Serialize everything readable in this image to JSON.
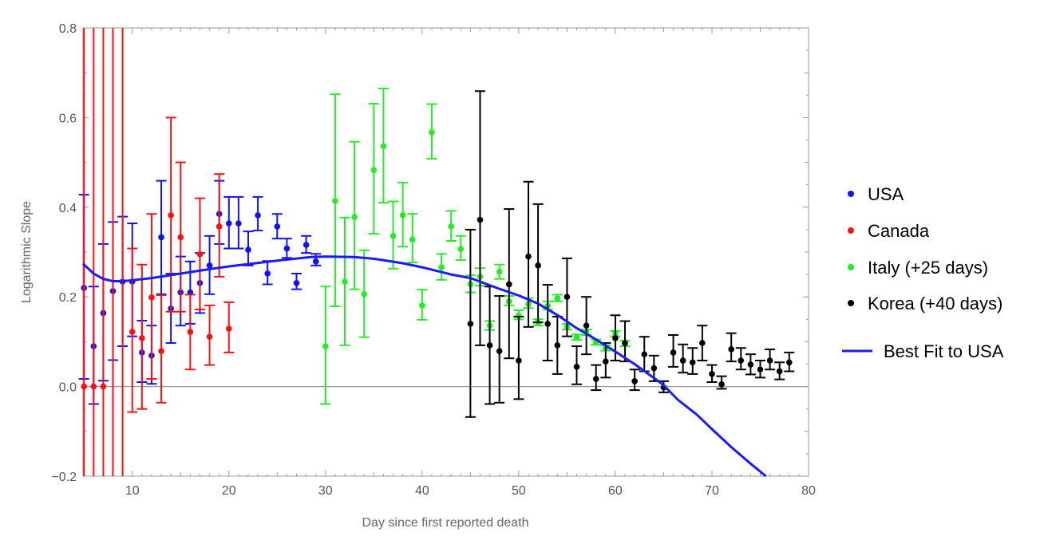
{
  "chart_data": {
    "type": "scatter",
    "title": "",
    "xlabel": "Day since first reported death",
    "ylabel": "Logarithmic Slope",
    "xlim": [
      4.9,
      80
    ],
    "ylim": [
      -0.2,
      0.8
    ],
    "xticks": [
      10,
      20,
      30,
      40,
      50,
      60,
      70,
      80
    ],
    "yticks": [
      -0.2,
      0.0,
      0.2,
      0.4,
      0.6,
      0.8
    ],
    "ytick_labels": [
      "−0.2",
      "0.0",
      "0.2",
      "0.4",
      "0.6",
      "0.8"
    ],
    "grid": false,
    "zero_line": true,
    "legend_position": "right",
    "point_format": [
      "day",
      "value",
      "error_low",
      "error_high"
    ],
    "series": [
      {
        "name": "USA",
        "color": "#1010ff",
        "points": [
          [
            5,
            0.22,
            0.017,
            0.428
          ],
          [
            6,
            0.09,
            -0.039,
            0.223
          ],
          [
            7,
            0.164,
            0.013,
            0.318
          ],
          [
            8,
            0.213,
            0.059,
            0.367
          ],
          [
            9,
            0.234,
            0.09,
            0.379
          ],
          [
            10,
            0.234,
            0.112,
            0.364
          ],
          [
            11,
            0.076,
            0.01,
            0.147
          ],
          [
            12,
            0.069,
            0.006,
            0.136
          ],
          [
            13,
            0.333,
            0.206,
            0.459
          ],
          [
            14,
            0.174,
            0.097,
            0.252
          ],
          [
            15,
            0.21,
            0.136,
            0.29
          ],
          [
            16,
            0.21,
            0.14,
            0.279
          ],
          [
            17,
            0.231,
            0.164,
            0.298
          ],
          [
            18,
            0.27,
            0.206,
            0.336
          ],
          [
            19,
            0.385,
            0.318,
            0.459
          ],
          [
            20,
            0.364,
            0.308,
            0.423
          ],
          [
            21,
            0.364,
            0.308,
            0.423
          ],
          [
            22,
            0.305,
            0.27,
            0.346
          ],
          [
            23,
            0.382,
            0.348,
            0.423
          ],
          [
            24,
            0.252,
            0.228,
            0.28
          ],
          [
            25,
            0.357,
            0.33,
            0.385
          ],
          [
            26,
            0.308,
            0.287,
            0.33
          ],
          [
            27,
            0.231,
            0.217,
            0.252
          ],
          [
            28,
            0.316,
            0.298,
            0.336
          ],
          [
            29,
            0.279,
            0.27,
            0.296
          ]
        ]
      },
      {
        "name": "Canada",
        "color": "#ff1010",
        "points": [
          [
            5,
            0,
            -1,
            1
          ],
          [
            6,
            0,
            -1,
            1
          ],
          [
            7,
            0,
            -1,
            1
          ],
          [
            8,
            null,
            -1,
            1
          ],
          [
            9,
            null,
            -1,
            1
          ],
          [
            10,
            0.122,
            -0.057,
            0.308
          ],
          [
            11,
            0.108,
            -0.05,
            0.272
          ],
          [
            12,
            0.199,
            0.017,
            0.385
          ],
          [
            13,
            0.079,
            -0.036,
            0.204
          ],
          [
            14,
            0.382,
            0.167,
            0.6
          ],
          [
            15,
            0.333,
            0.167,
            0.5
          ],
          [
            16,
            0.122,
            0.038,
            0.205
          ],
          [
            17,
            0.295,
            0.172,
            0.42
          ],
          [
            18,
            0.111,
            0.048,
            0.181
          ],
          [
            19,
            0.357,
            0.245,
            0.474
          ],
          [
            20,
            0.129,
            0.076,
            0.188
          ]
        ]
      },
      {
        "name": "Italy (+25 days)",
        "color": "#22ee22",
        "points": [
          [
            30,
            0.09,
            -0.039,
            0.223
          ],
          [
            31,
            0.414,
            0.179,
            0.652
          ],
          [
            32,
            0.234,
            0.092,
            0.377
          ],
          [
            33,
            0.378,
            0.217,
            0.546
          ],
          [
            34,
            0.206,
            0.11,
            0.304
          ],
          [
            35,
            0.483,
            0.341,
            0.631
          ],
          [
            36,
            0.536,
            0.41,
            0.665
          ],
          [
            37,
            0.336,
            0.263,
            0.413
          ],
          [
            38,
            0.382,
            0.312,
            0.455
          ],
          [
            39,
            0.328,
            0.277,
            0.385
          ],
          [
            40,
            0.181,
            0.149,
            0.216
          ],
          [
            41,
            0.567,
            0.508,
            0.63
          ],
          [
            42,
            0.266,
            0.238,
            0.296
          ],
          [
            43,
            0.357,
            0.325,
            0.392
          ],
          [
            44,
            0.307,
            0.282,
            0.336
          ],
          [
            45,
            0.228,
            0.21,
            0.248
          ],
          [
            46,
            0.245,
            0.225,
            0.264
          ],
          [
            47,
            0.136,
            0.126,
            0.146
          ],
          [
            48,
            0.256,
            0.24,
            0.272
          ],
          [
            49,
            0.19,
            0.181,
            0.202
          ],
          [
            50,
            0.158,
            0.15,
            0.17
          ],
          [
            51,
            0.184,
            0.175,
            0.197
          ],
          [
            52,
            0.143,
            0.136,
            0.15
          ],
          [
            53,
            0.18,
            0.172,
            0.19
          ],
          [
            54,
            0.197,
            0.19,
            0.205
          ],
          [
            55,
            0.133,
            0.127,
            0.14
          ],
          [
            56,
            0.11,
            0.104,
            0.116
          ],
          [
            57,
            0.121,
            0.115,
            0.127
          ],
          [
            58,
            0.099,
            0.093,
            0.105
          ],
          [
            59,
            0.086,
            0.08,
            0.092
          ],
          [
            60,
            0.118,
            0.112,
            0.124
          ],
          [
            61,
            0.096,
            0.09,
            0.102
          ]
        ]
      },
      {
        "name": "Korea (+40 days)",
        "color": "#000000",
        "points": [
          [
            45,
            0.14,
            -0.068,
            0.35
          ],
          [
            46,
            0.372,
            0.092,
            0.659
          ],
          [
            47,
            0.092,
            -0.039,
            0.223
          ],
          [
            48,
            0.079,
            -0.036,
            0.202
          ],
          [
            49,
            0.228,
            0.063,
            0.396
          ],
          [
            50,
            0.058,
            -0.028,
            0.156
          ],
          [
            51,
            0.29,
            0.133,
            0.457
          ],
          [
            52,
            0.27,
            0.143,
            0.407
          ],
          [
            53,
            0.14,
            0.058,
            0.227
          ],
          [
            54,
            0.092,
            0.028,
            0.156
          ],
          [
            55,
            0.2,
            0.112,
            0.286
          ],
          [
            56,
            0.044,
            0.005,
            0.09
          ],
          [
            57,
            0.136,
            0.072,
            0.2
          ],
          [
            58,
            0.017,
            -0.008,
            0.048
          ],
          [
            59,
            0.056,
            0.02,
            0.097
          ],
          [
            60,
            0.108,
            0.058,
            0.159
          ],
          [
            61,
            0.097,
            0.056,
            0.146
          ],
          [
            62,
            0.012,
            -0.008,
            0.038
          ],
          [
            63,
            0.072,
            0.034,
            0.111
          ],
          [
            64,
            0.041,
            0.012,
            0.069
          ],
          [
            65,
            -0.002,
            -0.013,
            0.012
          ],
          [
            66,
            0.076,
            0.044,
            0.115
          ],
          [
            67,
            0.058,
            0.031,
            0.094
          ],
          [
            68,
            0.054,
            0.028,
            0.086
          ],
          [
            69,
            0.097,
            0.058,
            0.136
          ],
          [
            70,
            0.028,
            0.01,
            0.048
          ],
          [
            71,
            0.005,
            -0.005,
            0.023
          ],
          [
            72,
            0.083,
            0.056,
            0.119
          ],
          [
            73,
            0.058,
            0.038,
            0.086
          ],
          [
            74,
            0.049,
            0.027,
            0.072
          ],
          [
            75,
            0.038,
            0.02,
            0.058
          ],
          [
            76,
            0.058,
            0.038,
            0.083
          ],
          [
            77,
            0.034,
            0.016,
            0.054
          ],
          [
            78,
            0.054,
            0.034,
            0.076
          ]
        ]
      }
    ],
    "fit": {
      "name": "Best Fit to USA",
      "color": "#1a1aff",
      "points": [
        [
          4.9,
          0.274
        ],
        [
          6,
          0.252
        ],
        [
          7,
          0.24
        ],
        [
          8,
          0.235
        ],
        [
          9,
          0.235
        ],
        [
          10,
          0.237
        ],
        [
          12,
          0.242
        ],
        [
          15,
          0.252
        ],
        [
          18,
          0.262
        ],
        [
          20,
          0.268
        ],
        [
          25,
          0.281
        ],
        [
          28.5,
          0.289
        ],
        [
          30,
          0.29
        ],
        [
          33,
          0.289
        ],
        [
          35,
          0.285
        ],
        [
          38,
          0.275
        ],
        [
          40,
          0.266
        ],
        [
          43,
          0.25
        ],
        [
          45,
          0.242
        ],
        [
          48,
          0.218
        ],
        [
          50,
          0.203
        ],
        [
          52,
          0.185
        ],
        [
          54.1,
          0.158
        ],
        [
          55.8,
          0.133
        ],
        [
          58,
          0.105
        ],
        [
          60,
          0.078
        ],
        [
          62,
          0.05
        ],
        [
          64.9,
          0.005
        ],
        [
          66.5,
          -0.03
        ],
        [
          68.4,
          -0.062
        ],
        [
          70,
          -0.095
        ],
        [
          72,
          -0.135
        ],
        [
          74,
          -0.172
        ],
        [
          75.6,
          -0.2
        ]
      ]
    }
  }
}
